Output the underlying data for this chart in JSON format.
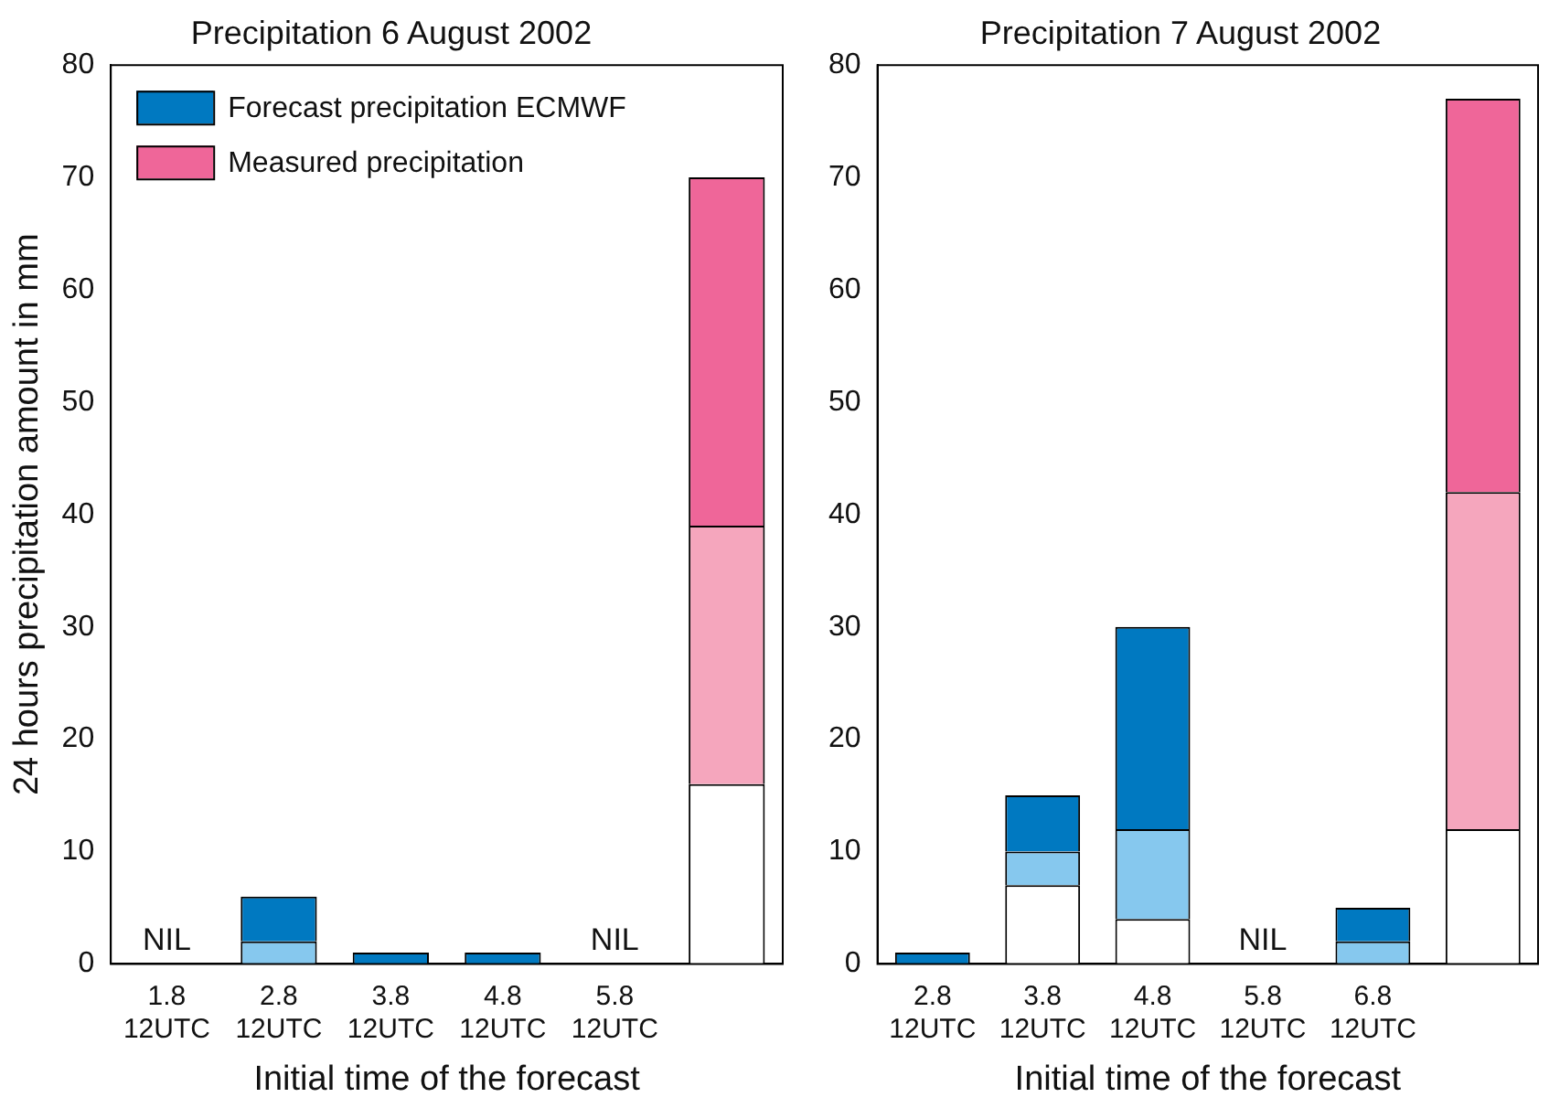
{
  "chart_data": [
    {
      "type": "bar",
      "title": "Precipitation 6 August 2002",
      "xlabel": "Initial time of the forecast",
      "ylabel": "24 hours precipitation amount in mm",
      "stacked": true,
      "categories": [
        "1.8 12UTC",
        "2.8 12UTC",
        "3.8 12UTC",
        "4.8 12UTC",
        "5.8 12UTC",
        null
      ],
      "series": [
        {
          "color": "#ffffff",
          "values": [
            null,
            null,
            null,
            null,
            null,
            16
          ]
        },
        {
          "color": "#86c8ee",
          "values": [
            null,
            2,
            null,
            null,
            null,
            null
          ]
        },
        {
          "color": "#f5a6bd",
          "values": [
            null,
            null,
            null,
            null,
            null,
            23
          ]
        },
        {
          "name": "Forecast precipitation ECMWF",
          "color": "#0079c1",
          "values": [
            null,
            4,
            1,
            1,
            null,
            null
          ]
        },
        {
          "name": "Measured precipitation",
          "color": "#ef6699",
          "values": [
            null,
            null,
            null,
            null,
            null,
            31
          ]
        }
      ],
      "ylim": [
        0,
        80
      ],
      "yticks": [
        0,
        10,
        20,
        30,
        40,
        50,
        60,
        70,
        80
      ],
      "grid": false,
      "legend": "top left",
      "annotations": [
        "NIL",
        "NIL"
      ]
    },
    {
      "type": "bar",
      "title": "Precipitation 7 August 2002",
      "xlabel": "Initial time of the forecast",
      "stacked": true,
      "categories": [
        "2.8 12UTC",
        "3.8 12UTC",
        "4.8 12UTC",
        "5.8 12UTC",
        "6.8 12UTC",
        null
      ],
      "series": [
        {
          "color": "#ffffff",
          "values": [
            null,
            7,
            4,
            null,
            null,
            12
          ]
        },
        {
          "color": "#86c8ee",
          "values": [
            null,
            3,
            8,
            null,
            2,
            null
          ]
        },
        {
          "color": "#f5a6bd",
          "values": [
            null,
            null,
            null,
            null,
            null,
            30
          ]
        },
        {
          "color": "#0079c1",
          "values": [
            1,
            5,
            18,
            null,
            3,
            null
          ]
        },
        {
          "color": "#ef6699",
          "values": [
            null,
            null,
            null,
            null,
            null,
            35
          ]
        }
      ],
      "ylim": [
        0,
        80
      ],
      "yticks": [
        0,
        10,
        20,
        30,
        40,
        50,
        60,
        70,
        80
      ],
      "grid": false,
      "legend": false,
      "annotations": [
        "NIL"
      ]
    }
  ]
}
